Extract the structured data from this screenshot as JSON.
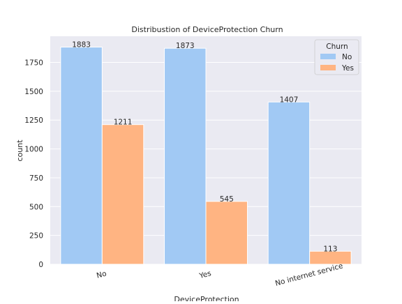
{
  "chart_data": {
    "type": "bar",
    "title": "Distribustion of DeviceProtection Churn",
    "xlabel": "DeviceProtection",
    "ylabel": "count",
    "categories": [
      "No",
      "Yes",
      "No internet service"
    ],
    "series": [
      {
        "name": "No",
        "values": [
          1883,
          1873,
          1407
        ],
        "color": "#a1c9f4"
      },
      {
        "name": "Yes",
        "values": [
          1211,
          545,
          113
        ],
        "color": "#ffb482"
      }
    ],
    "ylim": [
      0,
      1977
    ],
    "yticks": [
      0,
      250,
      500,
      750,
      1000,
      1250,
      1500,
      1750
    ],
    "grid": true,
    "legend": {
      "title": "Churn",
      "placement": "top-right"
    },
    "background_color": "#eaeaf2"
  }
}
